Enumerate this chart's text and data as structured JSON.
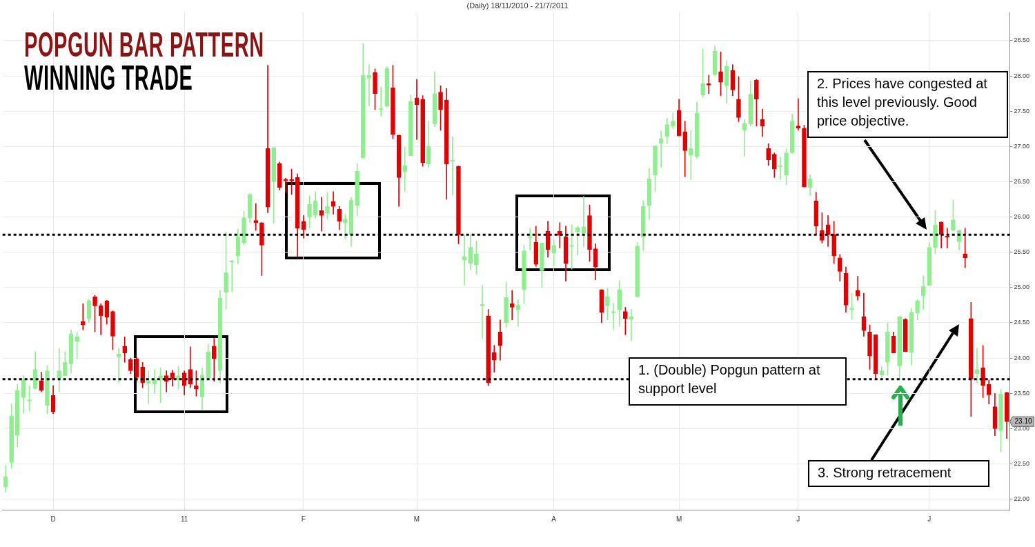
{
  "chart_data": {
    "type": "candlestick",
    "title": "POPGUN BAR PATTERN",
    "subtitle": "WINNING TRADE",
    "annotations": [
      "(Daily)  18/11/2010 - 21/7/2011",
      "1. (Double) Popgun pattern at support level",
      "2. Prices have congested at this level previously. Good price objective.",
      "3. Strong retracement",
      "23.10"
    ],
    "categories": [
      null,
      null,
      null,
      null,
      null,
      null,
      null,
      null,
      "D",
      null,
      null,
      null,
      null,
      null,
      null,
      null,
      null,
      null,
      null,
      null,
      null,
      null,
      null,
      null,
      null,
      null,
      null,
      null,
      null,
      null,
      "11",
      null,
      null,
      null,
      null,
      null,
      null,
      null,
      null,
      null,
      null,
      null,
      null,
      null,
      null,
      null,
      null,
      null,
      null,
      null,
      "F",
      null,
      null,
      null,
      null,
      null,
      null,
      null,
      null,
      null,
      null,
      null,
      null,
      null,
      null,
      null,
      null,
      null,
      null,
      "M",
      null,
      null,
      null,
      null,
      null,
      null,
      null,
      null,
      null,
      null,
      null,
      null,
      null,
      null,
      null,
      null,
      null,
      null,
      null,
      null,
      null,
      null,
      "A",
      null,
      null,
      null,
      null,
      null,
      null,
      null,
      null,
      null,
      null,
      null,
      null,
      null,
      null,
      null,
      null,
      null,
      null,
      null,
      null,
      "M",
      null,
      null,
      null,
      null,
      null,
      null,
      null,
      null,
      null,
      null,
      null,
      null,
      null,
      null,
      null,
      null,
      null,
      null,
      null,
      "J",
      null,
      null,
      null,
      null,
      null,
      null,
      null,
      null,
      null,
      null,
      null,
      null,
      null,
      null,
      null,
      null,
      null,
      null,
      null,
      null,
      null,
      "J",
      null,
      null,
      null,
      null,
      null,
      null,
      null,
      null,
      null,
      null,
      null,
      null,
      null
    ],
    "ohlc": [
      [
        22.17,
        22.48,
        22.1,
        22.32
      ],
      [
        22.52,
        23.35,
        22.44,
        23.18
      ],
      [
        22.91,
        23.63,
        22.74,
        23.54
      ],
      [
        23.44,
        23.75,
        23.22,
        23.7
      ],
      [
        23.39,
        23.61,
        23.25,
        23.39
      ],
      [
        23.57,
        24.09,
        23.56,
        23.84
      ],
      [
        23.68,
        23.8,
        23.52,
        23.54
      ],
      [
        23.33,
        23.89,
        23.21,
        23.82
      ],
      [
        23.47,
        23.61,
        23.21,
        23.24
      ],
      [
        23.72,
        24.14,
        23.52,
        23.82
      ],
      [
        23.75,
        24.09,
        23.75,
        23.94
      ],
      [
        23.92,
        24.4,
        23.79,
        24.34
      ],
      [
        24.24,
        24.37,
        23.99,
        24.3
      ],
      [
        24.52,
        24.77,
        24.4,
        24.47
      ],
      [
        24.56,
        24.83,
        24.5,
        24.81
      ],
      [
        24.87,
        24.89,
        24.37,
        24.74
      ],
      [
        24.74,
        24.77,
        24.33,
        24.6
      ],
      [
        24.81,
        24.82,
        24.48,
        24.58
      ],
      [
        24.66,
        24.67,
        24.12,
        24.31
      ],
      [
        24.02,
        24.14,
        23.65,
        24.06
      ],
      [
        24.17,
        24.3,
        23.94,
        24.07
      ],
      [
        23.98,
        24.0,
        23.78,
        23.82
      ],
      [
        23.99,
        24.01,
        23.67,
        23.73
      ],
      [
        23.87,
        23.94,
        23.58,
        23.65
      ],
      [
        23.64,
        23.82,
        23.35,
        23.68
      ],
      [
        23.63,
        23.84,
        23.5,
        23.69
      ],
      [
        23.7,
        23.86,
        23.37,
        23.75
      ],
      [
        23.75,
        23.82,
        23.52,
        23.67
      ],
      [
        23.79,
        23.83,
        23.6,
        23.7
      ],
      [
        23.69,
        23.88,
        23.56,
        23.75
      ],
      [
        23.79,
        23.82,
        23.48,
        23.61
      ],
      [
        23.84,
        24.16,
        23.58,
        23.63
      ],
      [
        23.61,
        23.82,
        23.46,
        23.56
      ],
      [
        23.45,
        23.86,
        23.27,
        23.76
      ],
      [
        23.72,
        24.2,
        23.72,
        24.09
      ],
      [
        24.17,
        24.28,
        23.67,
        23.99
      ],
      [
        23.82,
        24.96,
        23.65,
        24.85
      ],
      [
        24.93,
        25.79,
        24.69,
        25.21
      ],
      [
        25.36,
        25.39,
        24.94,
        25.37
      ],
      [
        25.45,
        25.83,
        25.34,
        25.72
      ],
      [
        25.63,
        26.08,
        25.6,
        25.99
      ],
      [
        25.99,
        26.33,
        25.92,
        26.32
      ],
      [
        25.95,
        26.19,
        25.81,
        25.92
      ],
      [
        25.92,
        25.92,
        25.17,
        25.6
      ],
      [
        26.97,
        28.15,
        26.06,
        26.14
      ],
      [
        26.5,
        26.99,
        25.91,
        26.98
      ],
      [
        26.76,
        26.78,
        26.38,
        26.42
      ],
      [
        26.53,
        26.55,
        26.35,
        26.51
      ],
      [
        26.53,
        26.68,
        26.32,
        26.51
      ],
      [
        26.56,
        26.61,
        25.43,
        25.84
      ],
      [
        25.94,
        26.02,
        25.7,
        25.82
      ],
      [
        26.0,
        26.3,
        25.84,
        26.18
      ],
      [
        26.02,
        26.36,
        25.98,
        26.23
      ],
      [
        26.09,
        26.28,
        25.8,
        26.02
      ],
      [
        26.05,
        26.35,
        25.97,
        26.15
      ],
      [
        26.22,
        26.36,
        26.04,
        26.15
      ],
      [
        26.11,
        26.15,
        25.82,
        25.94
      ],
      [
        25.92,
        26.04,
        25.69,
        25.97
      ],
      [
        25.75,
        26.28,
        25.58,
        26.24
      ],
      [
        26.16,
        26.76,
        26.02,
        26.65
      ],
      [
        26.84,
        28.46,
        26.83,
        28.01
      ],
      [
        27.97,
        28.16,
        27.57,
        28.01
      ],
      [
        28.05,
        28.1,
        27.52,
        27.75
      ],
      [
        27.52,
        27.84,
        27.43,
        27.52
      ],
      [
        27.57,
        28.13,
        27.56,
        28.11
      ],
      [
        27.83,
        28.15,
        27.11,
        27.17
      ],
      [
        27.16,
        27.16,
        26.15,
        26.56
      ],
      [
        26.64,
        26.99,
        26.36,
        26.73
      ],
      [
        26.87,
        27.73,
        26.87,
        27.64
      ],
      [
        27.69,
        27.95,
        27.1,
        27.59
      ],
      [
        27.67,
        27.72,
        26.72,
        26.77
      ],
      [
        26.75,
        27.36,
        26.7,
        27.0
      ],
      [
        27.32,
        28.06,
        27.28,
        27.75
      ],
      [
        27.77,
        27.86,
        27.23,
        27.52
      ],
      [
        27.66,
        27.82,
        26.25,
        26.75
      ],
      [
        26.79,
        27.14,
        26.31,
        26.79
      ],
      [
        26.72,
        26.72,
        25.62,
        25.75
      ],
      [
        25.39,
        25.74,
        25.03,
        25.44
      ],
      [
        25.34,
        25.75,
        25.25,
        25.57
      ],
      [
        25.32,
        25.66,
        25.19,
        25.48
      ],
      [
        24.74,
        25.03,
        24.28,
        24.74
      ],
      [
        24.6,
        24.69,
        23.61,
        23.65
      ],
      [
        24.08,
        24.18,
        23.8,
        23.97
      ],
      [
        24.37,
        24.54,
        23.97,
        24.18
      ],
      [
        24.5,
        25.08,
        24.43,
        24.86
      ],
      [
        24.77,
        24.96,
        24.54,
        24.72
      ],
      [
        24.69,
        24.83,
        24.45,
        24.75
      ],
      [
        24.97,
        25.6,
        24.77,
        25.52
      ],
      [
        25.7,
        25.84,
        25.53,
        25.7
      ],
      [
        25.64,
        25.87,
        25.3,
        25.33
      ],
      [
        25.24,
        25.63,
        25.0,
        25.63
      ],
      [
        25.8,
        25.94,
        25.43,
        25.54
      ],
      [
        25.49,
        25.68,
        25.31,
        25.6
      ],
      [
        25.8,
        25.92,
        25.56,
        25.74
      ],
      [
        25.72,
        25.87,
        25.09,
        25.34
      ],
      [
        25.58,
        25.89,
        25.26,
        25.58
      ],
      [
        25.79,
        25.87,
        25.46,
        25.85
      ],
      [
        25.77,
        26.29,
        25.58,
        25.86
      ],
      [
        26.02,
        26.17,
        25.37,
        25.54
      ],
      [
        25.55,
        25.62,
        25.11,
        25.29
      ],
      [
        24.97,
        24.97,
        24.5,
        24.65
      ],
      [
        24.74,
        24.99,
        24.54,
        24.87
      ],
      [
        24.64,
        24.78,
        24.41,
        24.64
      ],
      [
        24.69,
        25.1,
        24.45,
        24.97
      ],
      [
        24.66,
        24.72,
        24.33,
        24.56
      ],
      [
        24.55,
        24.69,
        24.25,
        24.59
      ],
      [
        24.87,
        25.64,
        24.86,
        25.59
      ],
      [
        25.71,
        26.23,
        25.52,
        26.15
      ],
      [
        26.16,
        26.69,
        25.97,
        26.54
      ],
      [
        26.59,
        27.01,
        26.36,
        27.01
      ],
      [
        27.04,
        27.22,
        26.7,
        27.11
      ],
      [
        27.14,
        27.4,
        27.04,
        27.31
      ],
      [
        27.29,
        27.48,
        27.25,
        27.36
      ],
      [
        27.51,
        27.67,
        27.15,
        27.15
      ],
      [
        27.21,
        27.36,
        26.57,
        26.94
      ],
      [
        26.88,
        27.23,
        26.53,
        26.97
      ],
      [
        26.86,
        27.63,
        26.83,
        27.47
      ],
      [
        27.73,
        28.38,
        27.7,
        27.89
      ],
      [
        27.89,
        28.01,
        27.75,
        27.87
      ],
      [
        28.02,
        28.42,
        28.0,
        28.35
      ],
      [
        28.06,
        28.34,
        27.72,
        27.91
      ],
      [
        27.86,
        28.22,
        27.61,
        28.14
      ],
      [
        28.08,
        28.16,
        27.72,
        27.8
      ],
      [
        27.67,
        27.99,
        27.35,
        27.41
      ],
      [
        27.23,
        27.38,
        26.86,
        27.33
      ],
      [
        27.32,
        27.93,
        27.29,
        27.74
      ],
      [
        27.94,
        27.95,
        27.29,
        27.67
      ],
      [
        27.38,
        27.53,
        27.14,
        27.29
      ],
      [
        26.97,
        27.04,
        26.73,
        26.81
      ],
      [
        26.89,
        26.91,
        26.56,
        26.68
      ],
      [
        26.71,
        26.85,
        26.53,
        26.71
      ],
      [
        26.59,
        26.97,
        26.46,
        26.91
      ],
      [
        26.91,
        27.46,
        26.9,
        27.36
      ],
      [
        27.29,
        27.68,
        27.23,
        27.26
      ],
      [
        27.26,
        27.3,
        26.42,
        26.43
      ],
      [
        26.42,
        26.6,
        26.3,
        26.54
      ],
      [
        26.23,
        26.35,
        25.75,
        25.87
      ],
      [
        25.81,
        26.06,
        25.63,
        25.67
      ],
      [
        25.89,
        26.02,
        25.58,
        25.75
      ],
      [
        25.75,
        25.94,
        25.34,
        25.45
      ],
      [
        25.42,
        25.47,
        25.09,
        25.23
      ],
      [
        25.2,
        25.29,
        24.65,
        24.75
      ],
      [
        24.69,
        24.92,
        24.55,
        24.69
      ],
      [
        24.96,
        25.16,
        24.82,
        24.88
      ],
      [
        24.59,
        24.92,
        24.31,
        24.39
      ],
      [
        24.37,
        24.47,
        23.84,
        24.03
      ],
      [
        24.33,
        24.33,
        23.71,
        23.78
      ],
      [
        23.76,
        23.88,
        23.73,
        23.82
      ],
      [
        23.94,
        24.5,
        23.76,
        24.37
      ],
      [
        24.31,
        24.37,
        24.07,
        24.07
      ],
      [
        23.89,
        24.59,
        23.69,
        24.59
      ],
      [
        24.55,
        24.56,
        24.09,
        24.09
      ],
      [
        24.08,
        24.71,
        23.9,
        24.65
      ],
      [
        24.64,
        24.83,
        24.54,
        24.81
      ],
      [
        24.88,
        25.17,
        24.69,
        25.02
      ],
      [
        25.03,
        25.64,
        25.03,
        25.57
      ],
      [
        25.57,
        26.09,
        25.48,
        25.89
      ],
      [
        25.93,
        25.93,
        25.56,
        25.75
      ],
      [
        25.73,
        25.84,
        25.56,
        25.71
      ],
      [
        25.81,
        26.24,
        25.8,
        25.96
      ],
      [
        25.65,
        25.82,
        25.53,
        25.81
      ],
      [
        25.48,
        25.84,
        25.28,
        25.42
      ],
      [
        24.56,
        24.79,
        23.17,
        23.7
      ],
      [
        23.78,
        24.14,
        23.65,
        23.84
      ],
      [
        23.86,
        24.18,
        23.44,
        23.61
      ],
      [
        23.63,
        23.69,
        23.35,
        23.48
      ],
      [
        23.31,
        23.5,
        22.9,
        23.0
      ],
      [
        22.97,
        23.56,
        22.67,
        23.49
      ],
      [
        23.51,
        23.52,
        22.86,
        23.1
      ]
    ],
    "colors": [
      "#90ee90",
      "#90ee90",
      "#90ee90",
      "#90ee90",
      "#90ee90",
      "#90ee90",
      "#e00000",
      "#90ee90",
      "#e00000",
      "#90ee90",
      "#90ee90",
      "#90ee90",
      "#90ee90",
      "#e00000",
      "#90ee90",
      "#e00000",
      "#e00000",
      "#e00000",
      "#e00000",
      "#90ee90",
      "#e00000",
      "#e00000",
      "#e00000",
      "#e00000",
      "#90ee90",
      "#90ee90",
      "#90ee90",
      "#e00000",
      "#e00000",
      "#90ee90",
      "#e00000",
      "#e00000",
      "#e00000",
      "#90ee90",
      "#90ee90",
      "#e00000",
      "#90ee90",
      "#90ee90",
      "#90ee90",
      "#90ee90",
      "#90ee90",
      "#90ee90",
      "#e00000",
      "#e00000",
      "#e00000",
      "#90ee90",
      "#e00000",
      "#e00000",
      "#e00000",
      "#e00000",
      "#e00000",
      "#90ee90",
      "#90ee90",
      "#e00000",
      "#90ee90",
      "#e00000",
      "#e00000",
      "#90ee90",
      "#90ee90",
      "#90ee90",
      "#90ee90",
      "#90ee90",
      "#e00000",
      "#90ee90",
      "#90ee90",
      "#e00000",
      "#e00000",
      "#90ee90",
      "#90ee90",
      "#e00000",
      "#e00000",
      "#90ee90",
      "#90ee90",
      "#e00000",
      "#e00000",
      "#90ee90",
      "#e00000",
      "#90ee90",
      "#90ee90",
      "#90ee90",
      "#90ee90",
      "#e00000",
      "#e00000",
      "#e00000",
      "#90ee90",
      "#e00000",
      "#90ee90",
      "#90ee90",
      "#90ee90",
      "#e00000",
      "#90ee90",
      "#e00000",
      "#90ee90",
      "#e00000",
      "#e00000",
      "#90ee90",
      "#90ee90",
      "#90ee90",
      "#e00000",
      "#e00000",
      "#e00000",
      "#90ee90",
      "#90ee90",
      "#90ee90",
      "#e00000",
      "#90ee90",
      "#90ee90",
      "#90ee90",
      "#90ee90",
      "#90ee90",
      "#90ee90",
      "#90ee90",
      "#90ee90",
      "#e00000",
      "#e00000",
      "#90ee90",
      "#90ee90",
      "#90ee90",
      "#e00000",
      "#90ee90",
      "#e00000",
      "#90ee90",
      "#e00000",
      "#e00000",
      "#90ee90",
      "#90ee90",
      "#e00000",
      "#e00000",
      "#e00000",
      "#e00000",
      "#90ee90",
      "#90ee90",
      "#90ee90",
      "#e00000",
      "#e00000",
      "#90ee90",
      "#e00000",
      "#e00000",
      "#e00000",
      "#e00000",
      "#e00000",
      "#e00000",
      "#90ee90",
      "#e00000",
      "#e00000",
      "#e00000",
      "#e00000",
      "#90ee90",
      "#90ee90",
      "#e00000",
      "#90ee90",
      "#e00000",
      "#90ee90",
      "#90ee90",
      "#90ee90",
      "#90ee90",
      "#90ee90",
      "#e00000",
      "#e00000",
      "#90ee90",
      "#90ee90",
      "#e00000",
      "#e00000",
      "#90ee90",
      "#e00000",
      "#e00000",
      "#e00000",
      "#90ee90",
      "#e00000"
    ],
    "ylim": [
      21.85,
      28.9
    ],
    "yticks": [
      {
        "value": 22,
        "label": "22.00"
      },
      {
        "value": 22.5,
        "label": "22.50"
      },
      {
        "value": 23,
        "label": "23.00"
      },
      {
        "value": 23.5,
        "label": "23.50"
      },
      {
        "value": 24,
        "label": "24.00"
      },
      {
        "value": 24.5,
        "label": "24.50"
      },
      {
        "value": 25,
        "label": "25.00"
      },
      {
        "value": 25.5,
        "label": "25.50"
      },
      {
        "value": 26,
        "label": "26.00"
      },
      {
        "value": 26.5,
        "label": "26.50"
      },
      {
        "value": 27,
        "label": "27.00"
      },
      {
        "value": 27.5,
        "label": "27.50"
      },
      {
        "value": 28,
        "label": "28.00"
      },
      {
        "value": 28.5,
        "label": "28.50"
      }
    ],
    "grid": true,
    "ref_lines": [
      {
        "axis": "y",
        "value": 25.75,
        "color": "#000000",
        "line_style": "dotted"
      },
      {
        "axis": "y",
        "value": 23.7,
        "color": "#000000",
        "line_style": "dotted"
      }
    ]
  }
}
